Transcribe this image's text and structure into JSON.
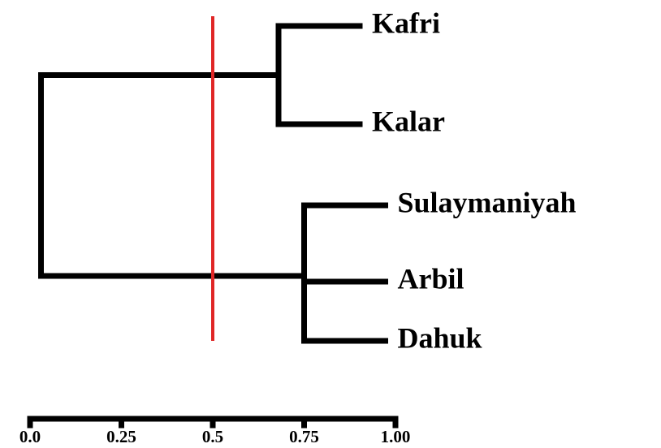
{
  "chart_data": {
    "type": "dendrogram",
    "tree": {
      "height": 0.03,
      "children": [
        {
          "height": 0.68,
          "children": [
            "Kafri",
            "Kalar"
          ]
        },
        {
          "height": 0.75,
          "children": [
            "Sulaymaniyah",
            "Arbil",
            "Dahuk"
          ]
        }
      ]
    },
    "cutoff": 0.5,
    "cutoff_color": "#e02626",
    "color": "#000000",
    "xlim": [
      0,
      1
    ],
    "xticks": [
      {
        "value": 0,
        "label": "0.0"
      },
      0.25,
      0.5,
      0.75,
      {
        "value": 1,
        "label": "1.00"
      }
    ]
  }
}
